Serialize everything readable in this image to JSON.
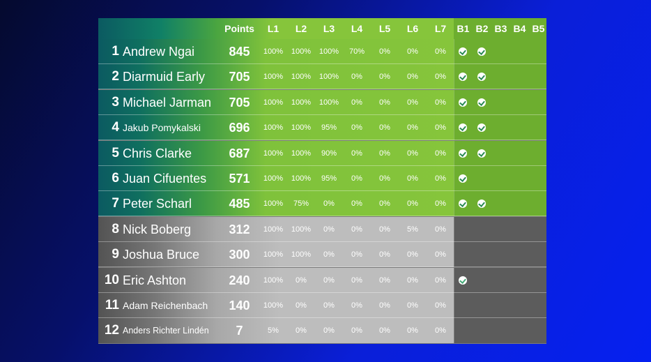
{
  "header": {
    "points": "Points",
    "levels": [
      "L1",
      "L2",
      "L3",
      "L4",
      "L5",
      "L6",
      "L7"
    ],
    "badges": [
      "B1",
      "B2",
      "B3",
      "B4",
      "B5"
    ]
  },
  "rows": [
    {
      "rank": "1",
      "name": "Andrew Ngai",
      "points": "845",
      "levels": [
        "100%",
        "100%",
        "100%",
        "70%",
        "0%",
        "0%",
        "0%"
      ],
      "badges": [
        true,
        true,
        false,
        false,
        false
      ],
      "tier": "green",
      "size": "normal"
    },
    {
      "rank": "2",
      "name": "Diarmuid Early",
      "points": "705",
      "levels": [
        "100%",
        "100%",
        "100%",
        "0%",
        "0%",
        "0%",
        "0%"
      ],
      "badges": [
        true,
        true,
        false,
        false,
        false
      ],
      "tier": "green",
      "size": "normal"
    },
    {
      "rank": "3",
      "name": "Michael Jarman",
      "points": "705",
      "levels": [
        "100%",
        "100%",
        "100%",
        "0%",
        "0%",
        "0%",
        "0%"
      ],
      "badges": [
        true,
        true,
        false,
        false,
        false
      ],
      "tier": "green",
      "size": "normal"
    },
    {
      "rank": "4",
      "name": "Jakub Pomykalski",
      "points": "696",
      "levels": [
        "100%",
        "100%",
        "95%",
        "0%",
        "0%",
        "0%",
        "0%"
      ],
      "badges": [
        true,
        true,
        false,
        false,
        false
      ],
      "tier": "green",
      "size": "small"
    },
    {
      "rank": "5",
      "name": "Chris Clarke",
      "points": "687",
      "levels": [
        "100%",
        "100%",
        "90%",
        "0%",
        "0%",
        "0%",
        "0%"
      ],
      "badges": [
        true,
        true,
        false,
        false,
        false
      ],
      "tier": "green",
      "size": "normal"
    },
    {
      "rank": "6",
      "name": "Juan Cifuentes",
      "points": "571",
      "levels": [
        "100%",
        "100%",
        "95%",
        "0%",
        "0%",
        "0%",
        "0%"
      ],
      "badges": [
        true,
        false,
        false,
        false,
        false
      ],
      "tier": "green",
      "size": "normal"
    },
    {
      "rank": "7",
      "name": "Peter Scharl",
      "points": "485",
      "levels": [
        "100%",
        "75%",
        "0%",
        "0%",
        "0%",
        "0%",
        "0%"
      ],
      "badges": [
        true,
        true,
        false,
        false,
        false
      ],
      "tier": "green",
      "size": "normal"
    },
    {
      "rank": "8",
      "name": "Nick Boberg",
      "points": "312",
      "levels": [
        "100%",
        "100%",
        "0%",
        "0%",
        "0%",
        "5%",
        "0%"
      ],
      "badges": [
        false,
        false,
        false,
        false,
        false
      ],
      "tier": "grey",
      "size": "normal"
    },
    {
      "rank": "9",
      "name": "Joshua Bruce",
      "points": "300",
      "levels": [
        "100%",
        "100%",
        "0%",
        "0%",
        "0%",
        "0%",
        "0%"
      ],
      "badges": [
        false,
        false,
        false,
        false,
        false
      ],
      "tier": "grey",
      "size": "normal"
    },
    {
      "rank": "10",
      "name": "Eric Ashton",
      "points": "240",
      "levels": [
        "100%",
        "0%",
        "0%",
        "0%",
        "0%",
        "0%",
        "0%"
      ],
      "badges": [
        true,
        false,
        false,
        false,
        false
      ],
      "tier": "grey",
      "size": "normal"
    },
    {
      "rank": "11",
      "name": "Adam Reichenbach",
      "points": "140",
      "levels": [
        "100%",
        "0%",
        "0%",
        "0%",
        "0%",
        "0%",
        "0%"
      ],
      "badges": [
        false,
        false,
        false,
        false,
        false
      ],
      "tier": "grey",
      "size": "small"
    },
    {
      "rank": "12",
      "name": "Anders Richter Lindén",
      "points": "7",
      "levels": [
        "5%",
        "0%",
        "0%",
        "0%",
        "0%",
        "0%",
        "0%"
      ],
      "badges": [
        false,
        false,
        false,
        false,
        false
      ],
      "tier": "grey",
      "size": "tiny"
    }
  ],
  "colors": {
    "green_tier": "#86c53b",
    "grey_tier": "#bdbdbd",
    "badge_check": "#2a8a55"
  },
  "icons": {
    "badge": "check-circle-icon"
  }
}
